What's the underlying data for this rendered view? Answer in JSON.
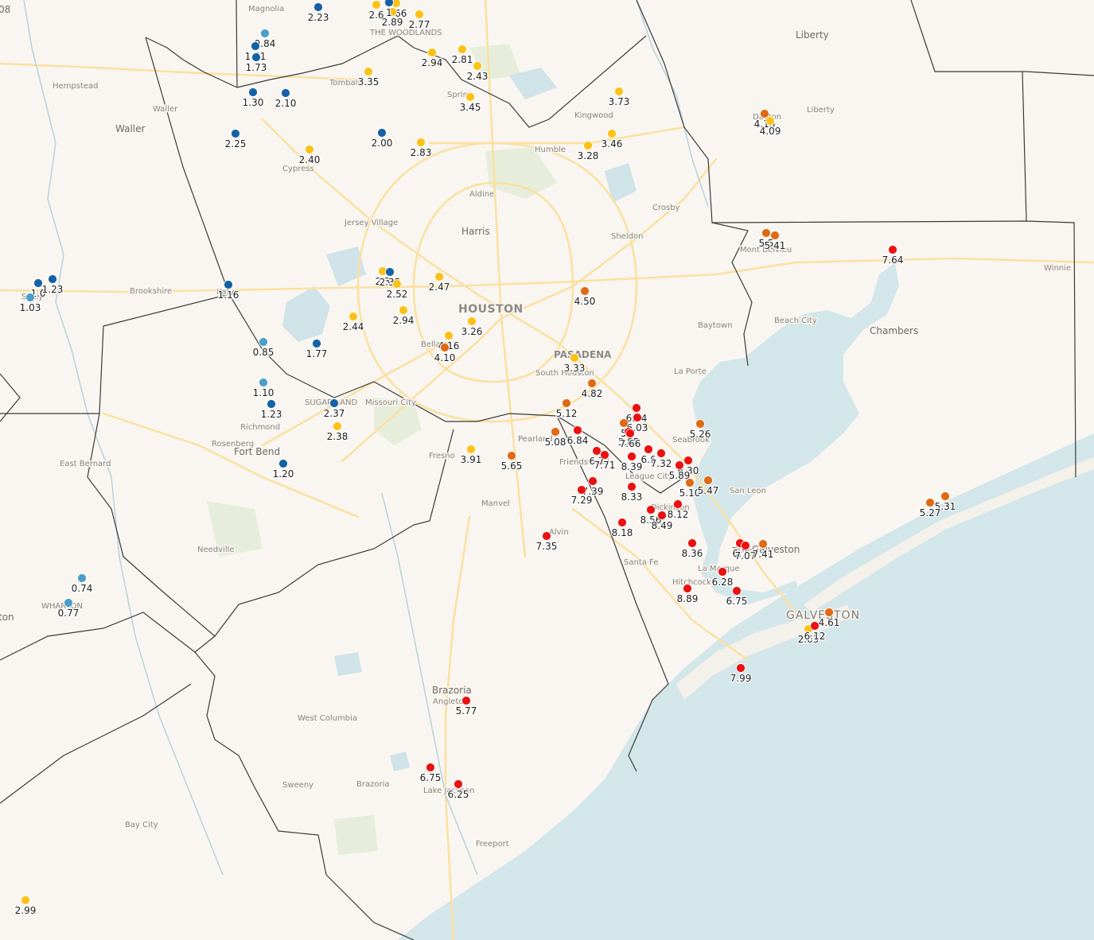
{
  "map": {
    "type": "point-value-map",
    "region": "Houston / Galveston area",
    "colors": {
      "land": "#f9f6f1",
      "water": "#d3e6ea",
      "lakes": "#cfe3e8",
      "county_lines": "#3a3a3a",
      "highways": "#fbe3a7",
      "green": "#e3ecd7"
    },
    "marker_classes": {
      "very_low": "#4a9fc9",
      "low": "#1561a6",
      "medium": "#fbc117",
      "high": "#e06a14",
      "very_high": "#ec1111"
    },
    "labels": {
      "magnolia": "Magnolia",
      "woodlands": "THE WOODLANDS",
      "liberty_county": "Liberty",
      "liberty_city": "Liberty",
      "hempstead": "Hempstead",
      "waller_city": "Waller",
      "waller_county": "Waller",
      "tomball": "Tomball",
      "spring": "Spring",
      "kingwood": "Kingwood",
      "humble": "Humble",
      "dayton": "Dayton",
      "cypress": "Cypress",
      "aldine": "Aldine",
      "crosby": "Crosby",
      "jersey_village": "Jersey Village",
      "harris": "Harris",
      "sheldon": "Sheldon",
      "mont_belvieu": "Mont Belvieu",
      "winnie": "Winnie",
      "brookshire": "Brookshire",
      "katy": "Katy",
      "houston": "HOUSTON",
      "baytown": "Baytown",
      "beach_city": "Beach City",
      "chambers": "Chambers",
      "bellaire": "Bellaire",
      "pasadena": "PASADENA",
      "south_houston": "South Houston",
      "la_porte": "La Porte",
      "sugar_land": "SUGAR LAND",
      "missouri_city": "Missouri City",
      "richmond": "Richmond",
      "rosenberg": "Rosenberg",
      "fort_bend": "Fort Bend",
      "east_bernard": "East Bernard",
      "pearland": "Pearland",
      "fresno": "Fresno",
      "friendswood": "Friendswood",
      "seabrook": "Seabrook",
      "league_city": "League City",
      "san_leon": "San Leon",
      "manvel": "Manvel",
      "dickinson": "Dickinson",
      "alvin": "Alvin",
      "needville": "Needville",
      "texas_city": "Texas City",
      "galveston_county": "Galveston",
      "santa_fe": "Santa Fe",
      "la_marque": "La Marque",
      "hitchcock": "Hitchcock",
      "wharton": "WHARTON",
      "galveston_city": "GALVESTON",
      "brazoria_county": "Brazoria",
      "angleton": "Angleton",
      "west_columbia": "West Columbia",
      "sweeny": "Sweeny",
      "brazoria_city": "Brazoria",
      "lake_jackson": "Lake Jackson",
      "bay_city": "Bay City",
      "freeport": "Freeport",
      "sealy": "Sealy",
      "edge_left_top": "08",
      "edge_left_mid": "ton"
    },
    "points": [
      {
        "label": "2.23",
        "level": "low"
      },
      {
        "label": "0.84",
        "level": "very_low"
      },
      {
        "label": "1.51",
        "level": "low"
      },
      {
        "label": "1.73",
        "level": "low"
      },
      {
        "label": "2.6",
        "level": "medium"
      },
      {
        "label": "2.66",
        "level": "medium"
      },
      {
        "label": "2.89",
        "level": "medium"
      },
      {
        "label": "2.77",
        "level": "medium"
      },
      {
        "label": "1",
        "level": "low"
      },
      {
        "label": "2.94",
        "level": "medium"
      },
      {
        "label": "2.81",
        "level": "medium"
      },
      {
        "label": "2.43",
        "level": "medium"
      },
      {
        "label": "3.35",
        "level": "medium"
      },
      {
        "label": "1.30",
        "level": "low"
      },
      {
        "label": "2.10",
        "level": "low"
      },
      {
        "label": "3.45",
        "level": "medium"
      },
      {
        "label": "3.73",
        "level": "medium"
      },
      {
        "label": "4.16",
        "level": "high"
      },
      {
        "label": "4.09",
        "level": "medium"
      },
      {
        "label": "2.25",
        "level": "low"
      },
      {
        "label": "2.00",
        "level": "low"
      },
      {
        "label": "2.83",
        "level": "medium"
      },
      {
        "label": "3.46",
        "level": "medium"
      },
      {
        "label": "3.28",
        "level": "medium"
      },
      {
        "label": "2.40",
        "level": "medium"
      },
      {
        "label": "5.5",
        "level": "high"
      },
      {
        "label": "5.41",
        "level": "high"
      },
      {
        "label": "7.64",
        "level": "very_high"
      },
      {
        "label": "1.0",
        "level": "low"
      },
      {
        "label": "1.23",
        "level": "low"
      },
      {
        "label": "1.03",
        "level": "very_low"
      },
      {
        "label": "1.16",
        "level": "low"
      },
      {
        "label": "2.3",
        "level": "medium"
      },
      {
        "label": "2.35",
        "level": "low"
      },
      {
        "label": "2.52",
        "level": "medium"
      },
      {
        "label": "2.47",
        "level": "medium"
      },
      {
        "label": "4.50",
        "level": "high"
      },
      {
        "label": "2.44",
        "level": "medium"
      },
      {
        "label": "2.94",
        "level": "medium"
      },
      {
        "label": "3.26",
        "level": "medium"
      },
      {
        "label": "4.16",
        "level": "medium"
      },
      {
        "label": "4.10",
        "level": "high"
      },
      {
        "label": "0.85",
        "level": "very_low"
      },
      {
        "label": "1.77",
        "level": "low"
      },
      {
        "label": "3.33",
        "level": "medium"
      },
      {
        "label": "4.82",
        "level": "high"
      },
      {
        "label": "1.10",
        "level": "very_low"
      },
      {
        "label": "1.23",
        "level": "low"
      },
      {
        "label": "2.37",
        "level": "low"
      },
      {
        "label": "2.38",
        "level": "medium"
      },
      {
        "label": "5.12",
        "level": "high"
      },
      {
        "label": "5.08",
        "level": "high"
      },
      {
        "label": "6.84",
        "level": "very_high"
      },
      {
        "label": "6.94",
        "level": "very_high"
      },
      {
        "label": "6.03",
        "level": "very_high"
      },
      {
        "label": "5",
        "level": "high"
      },
      {
        "label": "5.85",
        "level": "very_high"
      },
      {
        "label": "7.66",
        "level": "very_high"
      },
      {
        "label": "5.26",
        "level": "high"
      },
      {
        "label": "1.20",
        "level": "low"
      },
      {
        "label": "3.91",
        "level": "medium"
      },
      {
        "label": "5.65",
        "level": "high"
      },
      {
        "label": "6.7",
        "level": "very_high"
      },
      {
        "label": "7.71",
        "level": "very_high"
      },
      {
        "label": "8.39",
        "level": "very_high"
      },
      {
        "label": "6.6",
        "level": "very_high"
      },
      {
        "label": "7.32",
        "level": "very_high"
      },
      {
        "label": "6.30",
        "level": "very_high"
      },
      {
        "label": "5.89",
        "level": "very_high"
      },
      {
        "label": "7.39",
        "level": "very_high"
      },
      {
        "label": "7.29",
        "level": "very_high"
      },
      {
        "label": "8.33",
        "level": "very_high"
      },
      {
        "label": "5.10",
        "level": "high"
      },
      {
        "label": "5.47",
        "level": "high"
      },
      {
        "label": "5.31",
        "level": "high"
      },
      {
        "label": "5.27",
        "level": "high"
      },
      {
        "label": "8.12",
        "level": "very_high"
      },
      {
        "label": "8.56",
        "level": "very_high"
      },
      {
        "label": "8.49",
        "level": "very_high"
      },
      {
        "label": "8.18",
        "level": "very_high"
      },
      {
        "label": "7.35",
        "level": "very_high"
      },
      {
        "label": "8.36",
        "level": "very_high"
      },
      {
        "label": "6.7",
        "level": "very_high"
      },
      {
        "label": "7.07",
        "level": "very_high"
      },
      {
        "label": "7.41",
        "level": "high"
      },
      {
        "label": "6.28",
        "level": "very_high"
      },
      {
        "label": "8.89",
        "level": "very_high"
      },
      {
        "label": "6.75",
        "level": "very_high"
      },
      {
        "label": "0.74",
        "level": "very_low"
      },
      {
        "label": "0.77",
        "level": "very_low"
      },
      {
        "label": "4.61",
        "level": "high"
      },
      {
        "label": "2.63",
        "level": "medium"
      },
      {
        "label": "6.12",
        "level": "very_high"
      },
      {
        "label": "7.99",
        "level": "very_high"
      },
      {
        "label": "5.77",
        "level": "very_high"
      },
      {
        "label": "6.75",
        "level": "very_high"
      },
      {
        "label": "6.25",
        "level": "very_high"
      },
      {
        "label": "2.99",
        "level": "medium"
      }
    ]
  }
}
